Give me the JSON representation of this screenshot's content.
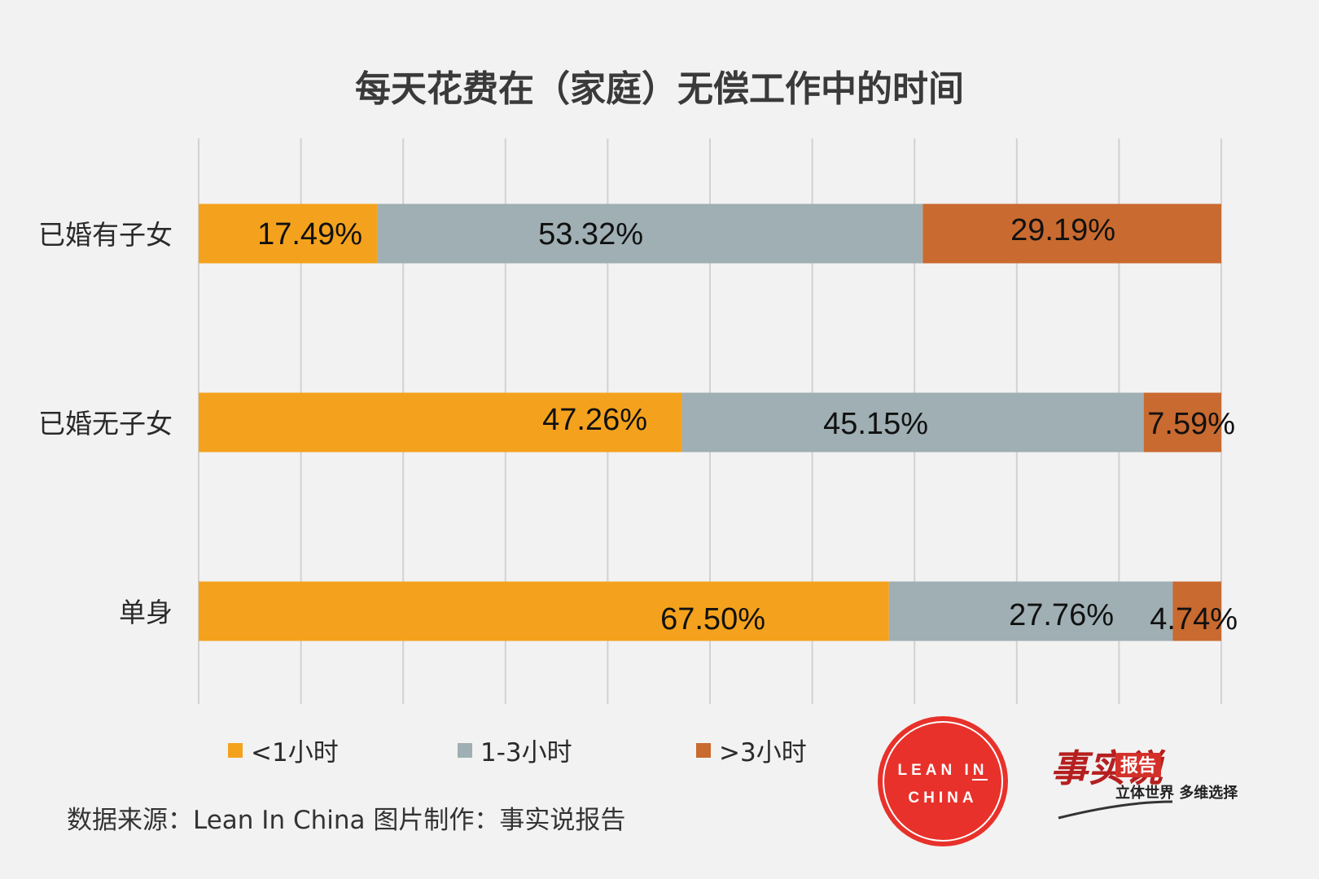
{
  "chart_data": {
    "type": "bar",
    "stacked": true,
    "orientation": "horizontal",
    "title": "每天花费在（家庭）无偿工作中的时间",
    "categories": [
      "已婚有子女",
      "已婚无子女",
      "单身"
    ],
    "series": [
      {
        "name": "<1小时",
        "color": "#f4a21d",
        "values": [
          17.49,
          47.26,
          67.5
        ],
        "labels": [
          "17.49%",
          "47.26%",
          "67.50%"
        ]
      },
      {
        "name": "1-3小时",
        "color": "#9fafb3",
        "values": [
          53.32,
          45.15,
          27.76
        ],
        "labels": [
          "53.32%",
          "45.15%",
          "27.76%"
        ]
      },
      {
        "name": ">3小时",
        "color": "#c96a30",
        "values": [
          29.19,
          7.59,
          4.74
        ],
        "labels": [
          "29.19%",
          "7.59%",
          "4.74%"
        ]
      }
    ],
    "xlim": [
      0,
      100
    ],
    "grid": true,
    "legend": "bottom"
  },
  "source": "数据来源：Lean In China 图片制作：事实说报告",
  "logo": {
    "line1": "LEAN IN",
    "line2": "CHINA",
    "color": "#e8312b"
  },
  "brand": {
    "name": "事实说",
    "badge": "报告",
    "slogan": "立体世界 多维选择"
  }
}
